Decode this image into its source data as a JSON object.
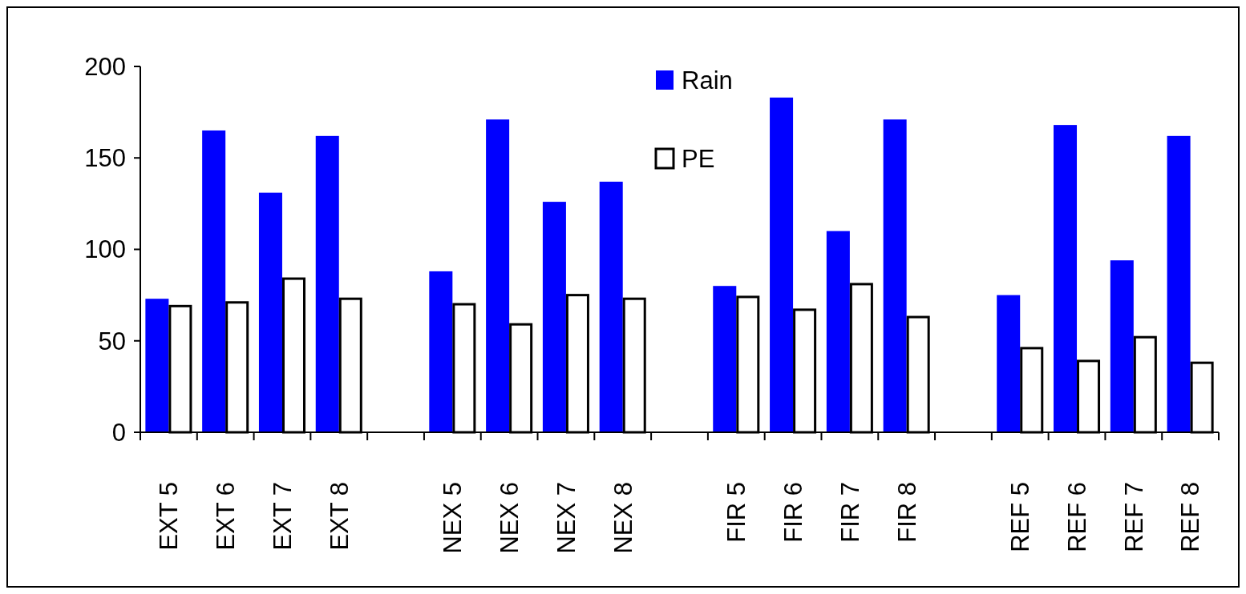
{
  "chart_data": {
    "type": "bar",
    "categories": [
      "EXT 5",
      "EXT 6",
      "EXT 7",
      "EXT 8",
      null,
      "NEX 5",
      "NEX 6",
      "NEX 7",
      "NEX 8",
      null,
      "FIR 5",
      "FIR 6",
      "FIR 7",
      "FIR 8",
      null,
      "REF 5",
      "REF 6",
      "REF 7",
      "REF 8"
    ],
    "series": [
      {
        "name": "Rain",
        "color": "#0000ff",
        "values": [
          73,
          165,
          131,
          162,
          null,
          88,
          171,
          126,
          137,
          null,
          80,
          183,
          110,
          171,
          null,
          75,
          168,
          94,
          162
        ]
      },
      {
        "name": "PE",
        "color": "#ffffff",
        "values": [
          69,
          71,
          84,
          73,
          null,
          70,
          59,
          75,
          73,
          null,
          74,
          67,
          81,
          63,
          null,
          46,
          39,
          52,
          38
        ]
      }
    ],
    "ylim": [
      0,
      200
    ],
    "yticks": [
      0,
      50,
      100,
      150,
      200
    ],
    "grid": false,
    "legend": "top"
  }
}
